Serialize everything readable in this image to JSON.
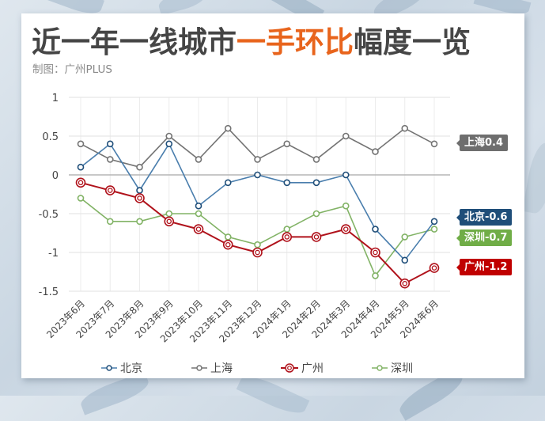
{
  "header": {
    "title_pre": "近一年一线城市",
    "title_highlight": "一手环比",
    "title_post": "幅度一览",
    "subtitle": "制图：广州PLUS"
  },
  "colors": {
    "title": "#454545",
    "highlight": "#e8641c",
    "beijing": "#4a7ead",
    "beijing_marker": "#1f4e79",
    "beijing_label": "#1f4e79",
    "shanghai": "#737373",
    "shanghai_label": "#6e6e6e",
    "guangzhou": "#b0121b",
    "guangzhou_label": "#c00000",
    "shenzhen": "#82b366",
    "shenzhen_label": "#70ad47"
  },
  "end_labels": {
    "shanghai": "上海0.4",
    "beijing": "北京-0.6",
    "shenzhen": "深圳-0.7",
    "guangzhou": "广州-1.2"
  },
  "legend": [
    "北京",
    "上海",
    "广州",
    "深圳"
  ],
  "chart_data": {
    "type": "line",
    "title": "近一年一线城市一手环比幅度一览",
    "subtitle": "制图：广州PLUS",
    "xlabel": "",
    "ylabel": "",
    "ylim": [
      -1.5,
      1
    ],
    "yticks": [
      1,
      0.5,
      0,
      -0.5,
      -1,
      -1.5
    ],
    "ytick_labels": [
      "1",
      "0.5",
      "0",
      "-0.5",
      "-1",
      "-1.5"
    ],
    "grid": true,
    "legend_position": "bottom",
    "categories": [
      "2023年6月",
      "2023年7月",
      "2023年8月",
      "2023年9月",
      "2023年10月",
      "2023年11月",
      "2023年12月",
      "2024年1月",
      "2024年2月",
      "2024年3月",
      "2024年4月",
      "2024年5月",
      "2024年6月"
    ],
    "series": [
      {
        "name": "北京",
        "values": [
          0.1,
          0.4,
          -0.2,
          0.4,
          -0.4,
          -0.1,
          0,
          -0.1,
          -0.1,
          0,
          -0.7,
          -1.1,
          -0.6
        ]
      },
      {
        "name": "上海",
        "values": [
          0.4,
          0.2,
          0.1,
          0.5,
          0.2,
          0.6,
          0.2,
          0.4,
          0.2,
          0.5,
          0.3,
          0.6,
          0.4
        ]
      },
      {
        "name": "广州",
        "values": [
          -0.1,
          -0.2,
          -0.3,
          -0.6,
          -0.7,
          -0.9,
          -1.0,
          -0.8,
          -0.8,
          -0.7,
          -1.0,
          -1.4,
          -1.2
        ]
      },
      {
        "name": "深圳",
        "values": [
          -0.3,
          -0.6,
          -0.6,
          -0.5,
          -0.5,
          -0.8,
          -0.9,
          -0.7,
          -0.5,
          -0.4,
          -1.3,
          -0.8,
          -0.7
        ]
      }
    ],
    "annotations": [
      "上海0.4",
      "北京-0.6",
      "深圳-0.7",
      "广州-1.2"
    ]
  }
}
